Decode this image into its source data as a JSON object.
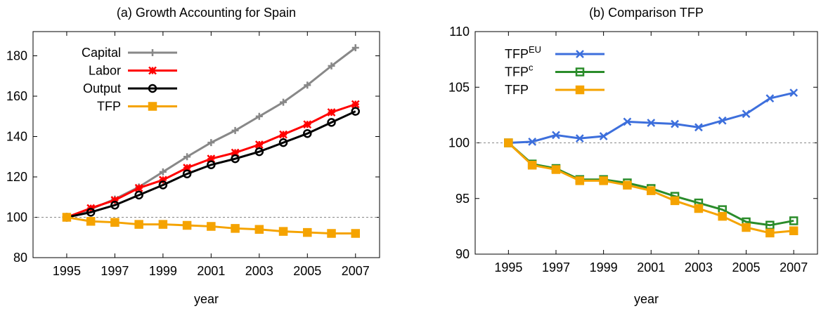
{
  "chart_data": [
    {
      "type": "line",
      "title": "(a) Growth Accounting for Spain",
      "xlabel": "year",
      "x": [
        1995,
        1996,
        1997,
        1998,
        1999,
        2000,
        2001,
        2002,
        2003,
        2004,
        2005,
        2006,
        2007
      ],
      "xlim": [
        1993.6,
        2008
      ],
      "xticks": [
        1995,
        1997,
        1999,
        2001,
        2003,
        2005,
        2007
      ],
      "ylim": [
        80,
        192
      ],
      "yticks": [
        80,
        100,
        120,
        140,
        160,
        180
      ],
      "reference_line": 100,
      "legend": "top-left",
      "series": [
        {
          "name": "Capital",
          "color": "#888888",
          "marker": "plus",
          "values": [
            100,
            104,
            109,
            115,
            122.5,
            130,
            137,
            143,
            150,
            157,
            165.5,
            175,
            184
          ]
        },
        {
          "name": "Labor",
          "color": "#ff0000",
          "marker": "star",
          "values": [
            100,
            104.5,
            108.5,
            114.5,
            118.5,
            124.5,
            129,
            132,
            136,
            141,
            146,
            152,
            156
          ]
        },
        {
          "name": "Output",
          "color": "#000000",
          "marker": "circle",
          "values": [
            100,
            102.5,
            106,
            111,
            116,
            121.5,
            126,
            129,
            132.5,
            137,
            141.5,
            147,
            152.5
          ]
        },
        {
          "name": "TFP",
          "color": "#f5a300",
          "marker": "square",
          "values": [
            100,
            98,
            97.5,
            96.5,
            96.5,
            96,
            95.5,
            94.5,
            94,
            93,
            92.5,
            92,
            92
          ]
        }
      ]
    },
    {
      "type": "line",
      "title": "(b) Comparison TFP",
      "xlabel": "year",
      "x": [
        1995,
        1996,
        1997,
        1998,
        1999,
        2000,
        2001,
        2002,
        2003,
        2004,
        2005,
        2006,
        2007
      ],
      "xlim": [
        1993.6,
        2008
      ],
      "xticks": [
        1995,
        1997,
        1999,
        2001,
        2003,
        2005,
        2007
      ],
      "ylim": [
        90,
        110
      ],
      "yticks": [
        90,
        95,
        100,
        105,
        110
      ],
      "reference_line": 100,
      "legend": "top-left",
      "series": [
        {
          "name": "TFP",
          "superscript": "EU",
          "color": "#3d6fdc",
          "marker": "x",
          "values": [
            100,
            100.1,
            100.7,
            100.4,
            100.6,
            101.9,
            101.8,
            101.7,
            101.4,
            102,
            102.6,
            104,
            104.5
          ]
        },
        {
          "name": "TFP",
          "superscript": "c",
          "color": "#2a8c2a",
          "marker": "opensquare",
          "values": [
            100,
            98.1,
            97.7,
            96.7,
            96.7,
            96.4,
            95.9,
            95.2,
            94.6,
            94.0,
            92.9,
            92.6,
            93.0
          ]
        },
        {
          "name": "TFP",
          "color": "#f5a300",
          "marker": "square",
          "values": [
            100,
            98.0,
            97.6,
            96.6,
            96.6,
            96.2,
            95.7,
            94.8,
            94.1,
            93.4,
            92.4,
            91.9,
            92.1
          ]
        }
      ]
    }
  ]
}
